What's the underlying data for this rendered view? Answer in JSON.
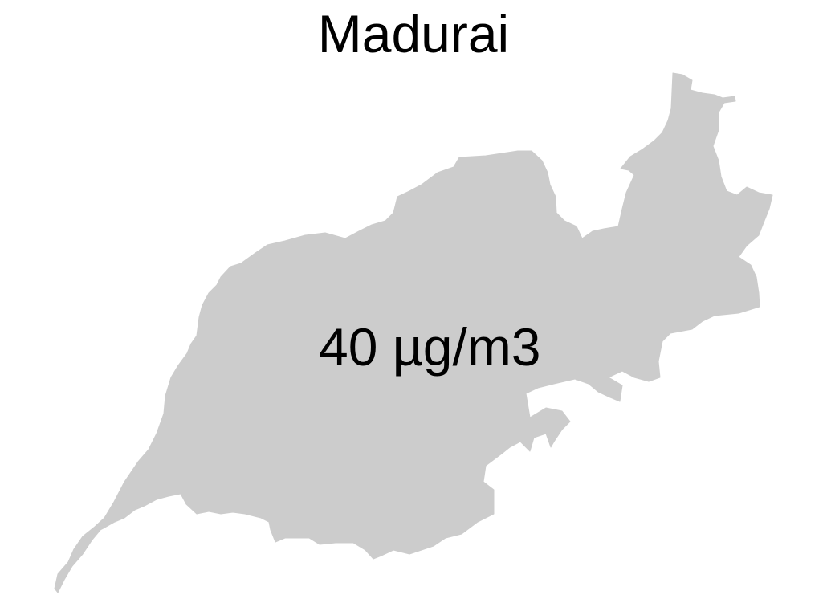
{
  "map": {
    "title": "Madurai",
    "value_label": "40 µg/m3",
    "region_fill_color": "#cccccc",
    "background_color": "#ffffff"
  }
}
